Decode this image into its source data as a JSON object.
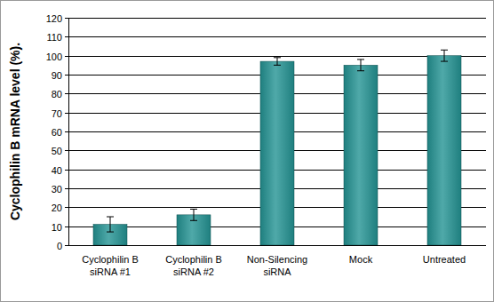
{
  "chart_data": {
    "type": "bar",
    "y_label": "Cyclophilin B mRNA level (%).",
    "categories": [
      "Cyclophilin B siRNA #1",
      "Cyclophilin B siRNA #2",
      "Non-Silencing siRNA",
      "Mock",
      "Untreated"
    ],
    "values": [
      11,
      16,
      97,
      95,
      100
    ],
    "errors": [
      4,
      3,
      2,
      3,
      3
    ],
    "color": "#1f7f7f",
    "ylim": [
      0,
      120
    ],
    "yticks": [
      0,
      10,
      20,
      30,
      40,
      50,
      60,
      70,
      80,
      90,
      100,
      110,
      120
    ],
    "grid": true
  }
}
